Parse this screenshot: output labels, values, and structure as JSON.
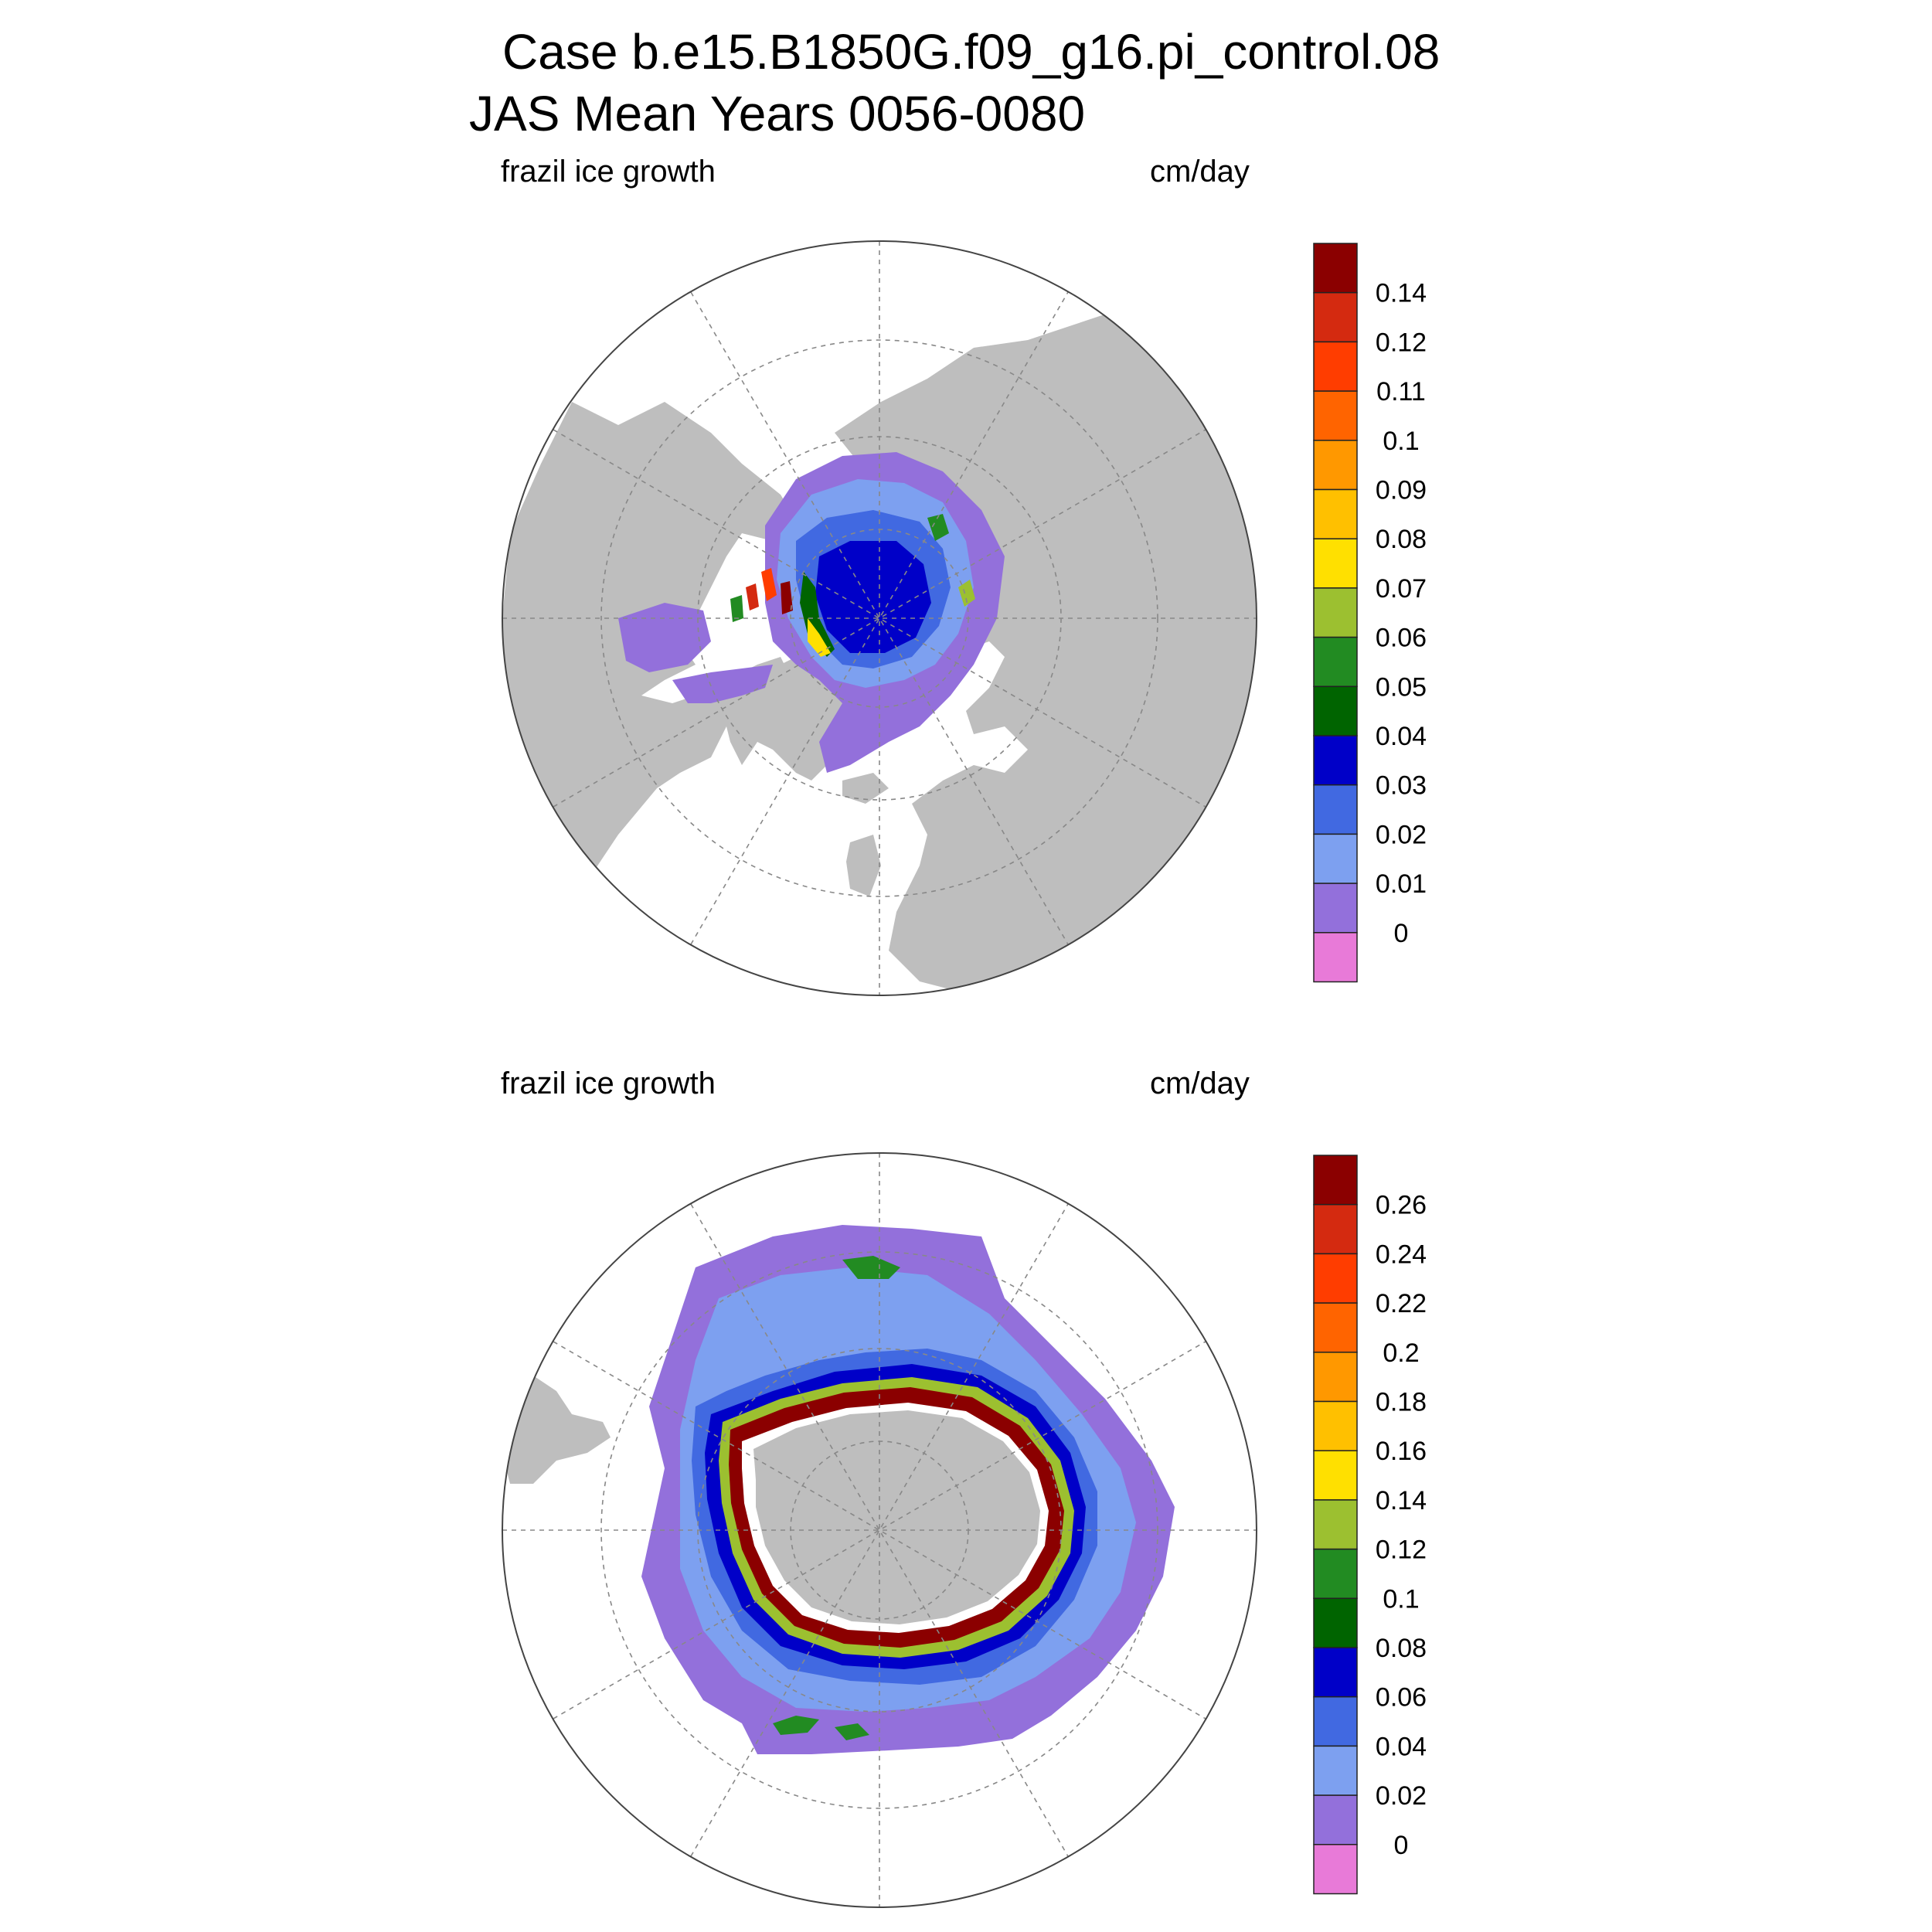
{
  "title": {
    "line1": "Case b.e15.B1850G.f09_g16.pi_control.08",
    "line2": "JAS Mean   Years 0056-0080"
  },
  "panels": [
    {
      "name": "north",
      "left_label": "frazil ice growth",
      "right_label": "cm/day",
      "colorbar_labels": [
        "0.14",
        "0.12",
        "0.11",
        "0.1",
        "0.09",
        "0.08",
        "0.07",
        "0.06",
        "0.05",
        "0.04",
        "0.03",
        "0.02",
        "0.01",
        "0"
      ]
    },
    {
      "name": "south",
      "left_label": "frazil ice growth",
      "right_label": "cm/day",
      "colorbar_labels": [
        "0.26",
        "0.24",
        "0.22",
        "0.2",
        "0.18",
        "0.16",
        "0.14",
        "0.12",
        "0.1",
        "0.08",
        "0.06",
        "0.04",
        "0.02",
        "0"
      ]
    }
  ],
  "colors": {
    "levels": [
      "#8b0000",
      "#d42a10",
      "#ff3d00",
      "#ff6400",
      "#ff9800",
      "#ffc000",
      "#ffe000",
      "#9cc030",
      "#228b22",
      "#006400",
      "#0000c8",
      "#4169e1",
      "#7da0f0",
      "#9370db",
      "#e87ad8"
    ],
    "land": "#bebebe",
    "ocean": "#ffffff",
    "grid": "#888888"
  }
}
